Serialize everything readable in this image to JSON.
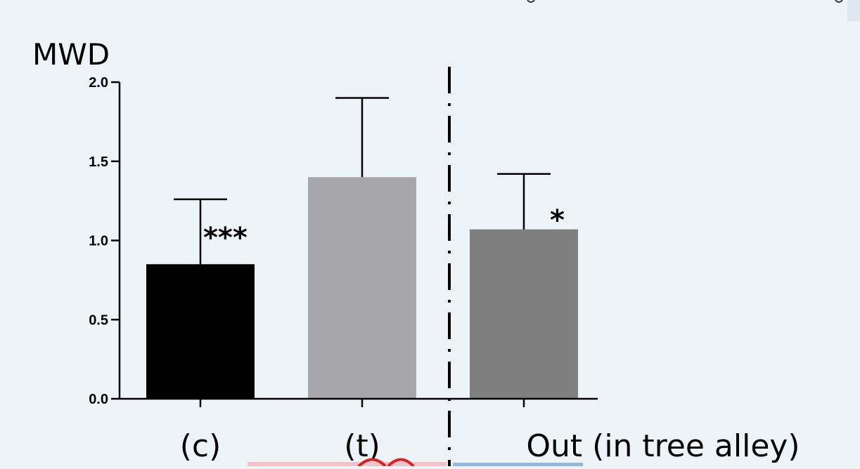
{
  "chart_data": {
    "type": "bar",
    "ylabel": "MWD",
    "ylim": [
      0,
      2.0
    ],
    "yticks": [
      "0.0",
      "0.5",
      "1.0",
      "1.5",
      "2.0"
    ],
    "ytick_values": [
      0,
      0.5,
      1.0,
      1.5,
      2.0
    ],
    "categories": [
      "(c)",
      "(t)",
      "Out (in tree alley)"
    ],
    "values": [
      0.85,
      1.4,
      1.07
    ],
    "error_upper": [
      1.26,
      1.9,
      1.42
    ],
    "significance": [
      "***",
      "",
      "*"
    ],
    "bar_colors": [
      "#000000",
      "#a7a6aa",
      "#7f7f7f"
    ],
    "separator": {
      "style": "dash-dot",
      "between": [
        "(t)",
        "Out (in tree alley)"
      ]
    },
    "grid": false,
    "legend": "none"
  },
  "colors": {
    "background": "#eef3f8",
    "axis": "#000000",
    "strip_pink": "#f4c2cb",
    "strip_red": "#e02020",
    "strip_blue": "#8fb8e8"
  }
}
